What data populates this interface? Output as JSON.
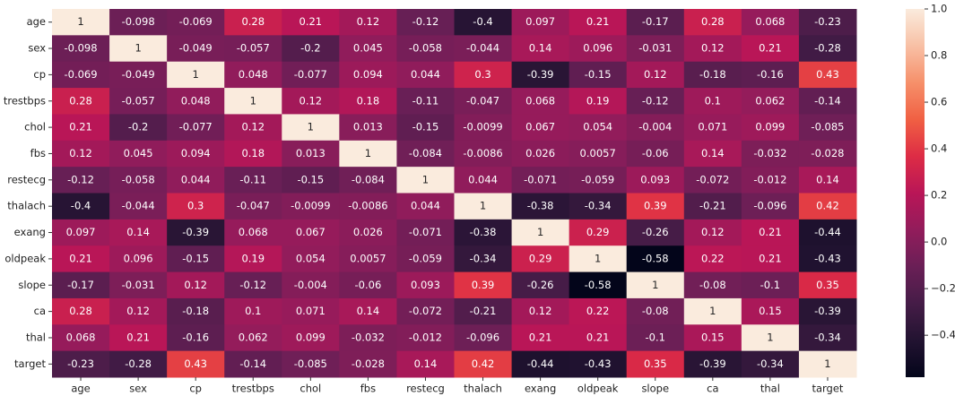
{
  "chart_data": {
    "type": "heatmap",
    "xcategories": [
      "age",
      "sex",
      "cp",
      "trestbps",
      "chol",
      "fbs",
      "restecg",
      "thalach",
      "exang",
      "oldpeak",
      "slope",
      "ca",
      "thal",
      "target"
    ],
    "ycategories": [
      "age",
      "sex",
      "cp",
      "trestbps",
      "chol",
      "fbs",
      "restecg",
      "thalach",
      "exang",
      "oldpeak",
      "slope",
      "ca",
      "thal",
      "target"
    ],
    "values": [
      [
        1,
        -0.098,
        -0.069,
        0.28,
        0.21,
        0.12,
        -0.12,
        -0.4,
        0.097,
        0.21,
        -0.17,
        0.28,
        0.068,
        -0.23
      ],
      [
        -0.098,
        1,
        -0.049,
        -0.057,
        -0.2,
        0.045,
        -0.058,
        -0.044,
        0.14,
        0.096,
        -0.031,
        0.12,
        0.21,
        -0.28
      ],
      [
        -0.069,
        -0.049,
        1,
        0.048,
        -0.077,
        0.094,
        0.044,
        0.3,
        -0.39,
        -0.15,
        0.12,
        -0.18,
        -0.16,
        0.43
      ],
      [
        0.28,
        -0.057,
        0.048,
        1,
        0.12,
        0.18,
        -0.11,
        -0.047,
        0.068,
        0.19,
        -0.12,
        0.1,
        0.062,
        -0.14
      ],
      [
        0.21,
        -0.2,
        -0.077,
        0.12,
        1,
        0.013,
        -0.15,
        -0.0099,
        0.067,
        0.054,
        -0.004,
        0.071,
        0.099,
        -0.085
      ],
      [
        0.12,
        0.045,
        0.094,
        0.18,
        0.013,
        1,
        -0.084,
        -0.0086,
        0.026,
        0.0057,
        -0.06,
        0.14,
        -0.032,
        -0.028
      ],
      [
        -0.12,
        -0.058,
        0.044,
        -0.11,
        -0.15,
        -0.084,
        1,
        0.044,
        -0.071,
        -0.059,
        0.093,
        -0.072,
        -0.012,
        0.14
      ],
      [
        -0.4,
        -0.044,
        0.3,
        -0.047,
        -0.0099,
        -0.0086,
        0.044,
        1,
        -0.38,
        -0.34,
        0.39,
        -0.21,
        -0.096,
        0.42
      ],
      [
        0.097,
        0.14,
        -0.39,
        0.068,
        0.067,
        0.026,
        -0.071,
        -0.38,
        1,
        0.29,
        -0.26,
        0.12,
        0.21,
        -0.44
      ],
      [
        0.21,
        0.096,
        -0.15,
        0.19,
        0.054,
        0.0057,
        -0.059,
        -0.34,
        0.29,
        1,
        -0.58,
        0.22,
        0.21,
        -0.43
      ],
      [
        -0.17,
        -0.031,
        0.12,
        -0.12,
        -0.004,
        -0.06,
        0.093,
        0.39,
        -0.26,
        -0.58,
        1,
        -0.08,
        -0.1,
        0.35
      ],
      [
        0.28,
        0.12,
        -0.18,
        0.1,
        0.071,
        0.14,
        -0.072,
        -0.21,
        0.12,
        0.22,
        -0.08,
        1,
        0.15,
        -0.39
      ],
      [
        0.068,
        0.21,
        -0.16,
        0.062,
        0.099,
        -0.032,
        -0.012,
        -0.096,
        0.21,
        0.21,
        -0.1,
        0.15,
        1,
        -0.34
      ],
      [
        -0.23,
        -0.28,
        0.43,
        -0.14,
        -0.085,
        -0.028,
        0.14,
        0.42,
        -0.44,
        -0.43,
        0.35,
        -0.39,
        -0.34,
        1
      ]
    ],
    "colormap": "rocket",
    "clim": [
      -0.58,
      1
    ],
    "cticks": [
      {
        "value": 1,
        "label": "1.0"
      },
      0.8,
      0.6,
      0.4,
      0.2,
      {
        "value": 0,
        "label": "0.0"
      },
      {
        "value": -0.2,
        "label": "−0.2"
      },
      {
        "value": -0.4,
        "label": "−0.4"
      }
    ]
  }
}
